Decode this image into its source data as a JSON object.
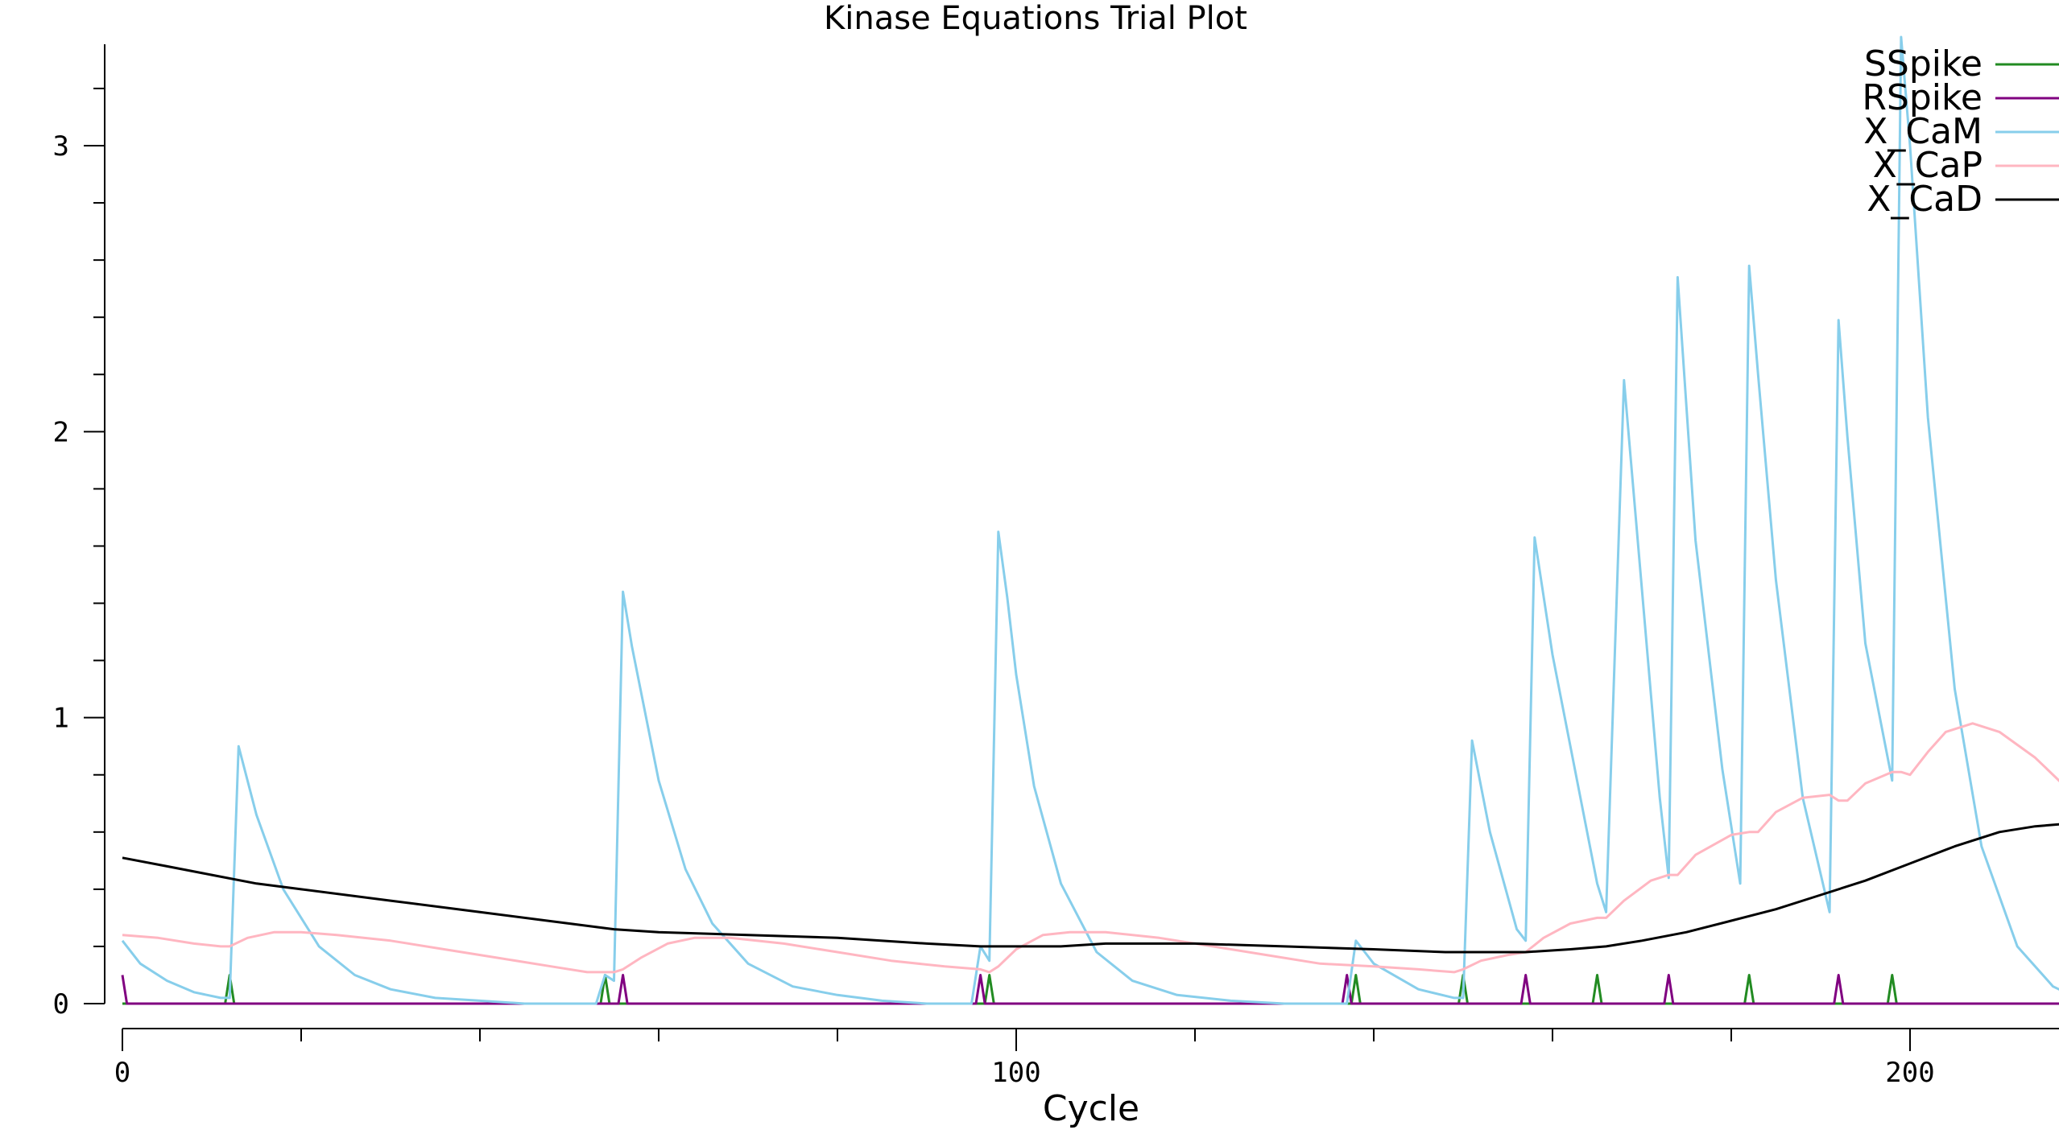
{
  "chart_data": {
    "type": "line",
    "title": "Kinase Equations Trial Plot",
    "xlabel": "Cycle",
    "ylabel": "",
    "xlim": [
      -2,
      218
    ],
    "ylim": [
      -0.08,
      3.35
    ],
    "xticks_major": [
      0,
      100,
      200
    ],
    "xtick_labels": [
      "0",
      "100",
      "200"
    ],
    "xticks_minor": [
      20,
      40,
      60,
      80,
      120,
      140,
      160,
      180
    ],
    "yticks_major": [
      0,
      1,
      2,
      3
    ],
    "ytick_labels": [
      "0",
      "1",
      "2",
      "3"
    ],
    "yticks_minor": [
      0.2,
      0.4,
      0.6,
      0.8,
      1.2,
      1.4,
      1.6,
      1.8,
      2.2,
      2.4,
      2.6,
      2.8,
      3.2
    ],
    "grid": false,
    "legend_position": "top-right",
    "series": [
      {
        "name": "SSpike",
        "color": "#228B22",
        "x": [
          0,
          11.5,
          12,
          12.5,
          53.5,
          54,
          54.5,
          96.5,
          97,
          97.5,
          137.5,
          138,
          138.5,
          149.5,
          150,
          150.5,
          164.5,
          165,
          165.5,
          181.5,
          182,
          182.5,
          197.5,
          198,
          198.5,
          218
        ],
        "y": [
          0,
          0,
          0.1,
          0,
          0,
          0.1,
          0,
          0,
          0.1,
          0,
          0,
          0.1,
          0,
          0,
          0.1,
          0,
          0,
          0.1,
          0,
          0,
          0.1,
          0,
          0,
          0.1,
          0,
          0
        ]
      },
      {
        "name": "RSpike",
        "color": "#800080",
        "x": [
          0,
          0.5,
          55.5,
          56,
          56.5,
          95.5,
          96,
          96.5,
          136.5,
          137,
          137.5,
          156.5,
          157,
          157.5,
          172.5,
          173,
          173.5,
          191.5,
          192,
          192.5,
          218
        ],
        "y": [
          0.1,
          0,
          0,
          0.1,
          0,
          0,
          0.1,
          0,
          0,
          0.1,
          0,
          0,
          0.1,
          0,
          0,
          0.1,
          0,
          0,
          0.1,
          0,
          0
        ]
      },
      {
        "name": "X_CaM",
        "color": "#87CEEB",
        "x": [
          0,
          2,
          5,
          8,
          11,
          12,
          13,
          15,
          18,
          22,
          26,
          30,
          35,
          40,
          45,
          50,
          52,
          53,
          54,
          55,
          56,
          57,
          60,
          63,
          66,
          70,
          75,
          80,
          85,
          90,
          94,
          95,
          96,
          97,
          98,
          99,
          100,
          102,
          105,
          109,
          113,
          118,
          124,
          130,
          136,
          137,
          138,
          139,
          140,
          145,
          149,
          150,
          151,
          153,
          156,
          157,
          158,
          160,
          163,
          165,
          166,
          168,
          172,
          173,
          174,
          176,
          179,
          181,
          182,
          183,
          185,
          188,
          191,
          192,
          193,
          195,
          198,
          199,
          200,
          202,
          205,
          208,
          212,
          216,
          218
        ],
        "y": [
          0.22,
          0.14,
          0.08,
          0.04,
          0.02,
          0.02,
          0.9,
          0.66,
          0.4,
          0.2,
          0.1,
          0.05,
          0.02,
          0.01,
          0.0,
          0.0,
          0.0,
          0.0,
          0.1,
          0.08,
          1.44,
          1.25,
          0.78,
          0.47,
          0.28,
          0.14,
          0.06,
          0.03,
          0.01,
          0.0,
          0.0,
          0.0,
          0.2,
          0.15,
          1.65,
          1.42,
          1.15,
          0.76,
          0.42,
          0.18,
          0.08,
          0.03,
          0.01,
          0.0,
          0.0,
          0.0,
          0.22,
          0.18,
          0.14,
          0.05,
          0.02,
          0.02,
          0.92,
          0.6,
          0.26,
          0.22,
          1.63,
          1.22,
          0.74,
          0.42,
          0.32,
          2.18,
          0.72,
          0.44,
          2.54,
          1.62,
          0.82,
          0.42,
          2.58,
          2.2,
          1.48,
          0.72,
          0.32,
          2.39,
          1.98,
          1.26,
          0.78,
          3.38,
          3.0,
          2.05,
          1.1,
          0.55,
          0.2,
          0.06,
          0.03
        ]
      },
      {
        "name": "X_CaP",
        "color": "#FFB6C1",
        "x": [
          0,
          4,
          8,
          11,
          12,
          14,
          17,
          20,
          24,
          30,
          36,
          42,
          48,
          52,
          54,
          55,
          56,
          58,
          61,
          64,
          68,
          74,
          80,
          86,
          92,
          96,
          97,
          98,
          100,
          103,
          106,
          110,
          116,
          122,
          128,
          134,
          140,
          145,
          149,
          150,
          152,
          155,
          157,
          159,
          162,
          165,
          166,
          168,
          171,
          173,
          174,
          176,
          180,
          182,
          183,
          185,
          188,
          191,
          192,
          193,
          195,
          198,
          199,
          200,
          202,
          204,
          207,
          210,
          214,
          218
        ],
        "y": [
          0.24,
          0.23,
          0.21,
          0.2,
          0.2,
          0.23,
          0.25,
          0.25,
          0.24,
          0.22,
          0.19,
          0.16,
          0.13,
          0.11,
          0.11,
          0.11,
          0.12,
          0.16,
          0.21,
          0.23,
          0.23,
          0.21,
          0.18,
          0.15,
          0.13,
          0.12,
          0.11,
          0.13,
          0.19,
          0.24,
          0.25,
          0.25,
          0.23,
          0.2,
          0.17,
          0.14,
          0.13,
          0.12,
          0.11,
          0.12,
          0.15,
          0.17,
          0.18,
          0.23,
          0.28,
          0.3,
          0.3,
          0.36,
          0.43,
          0.45,
          0.45,
          0.52,
          0.59,
          0.6,
          0.6,
          0.67,
          0.72,
          0.73,
          0.71,
          0.71,
          0.77,
          0.81,
          0.81,
          0.8,
          0.88,
          0.95,
          0.98,
          0.95,
          0.86,
          0.74
        ]
      },
      {
        "name": "X_CaD",
        "color": "#000000",
        "x": [
          0,
          5,
          10,
          15,
          20,
          30,
          40,
          50,
          55,
          60,
          70,
          80,
          90,
          96,
          100,
          105,
          110,
          115,
          120,
          130,
          140,
          148,
          152,
          157,
          162,
          166,
          170,
          175,
          180,
          185,
          190,
          195,
          200,
          205,
          210,
          214,
          218
        ],
        "y": [
          0.51,
          0.48,
          0.45,
          0.42,
          0.4,
          0.36,
          0.32,
          0.28,
          0.26,
          0.25,
          0.24,
          0.23,
          0.21,
          0.2,
          0.2,
          0.2,
          0.21,
          0.21,
          0.21,
          0.2,
          0.19,
          0.18,
          0.18,
          0.18,
          0.19,
          0.2,
          0.22,
          0.25,
          0.29,
          0.33,
          0.38,
          0.43,
          0.49,
          0.55,
          0.6,
          0.62,
          0.63
        ]
      }
    ]
  }
}
